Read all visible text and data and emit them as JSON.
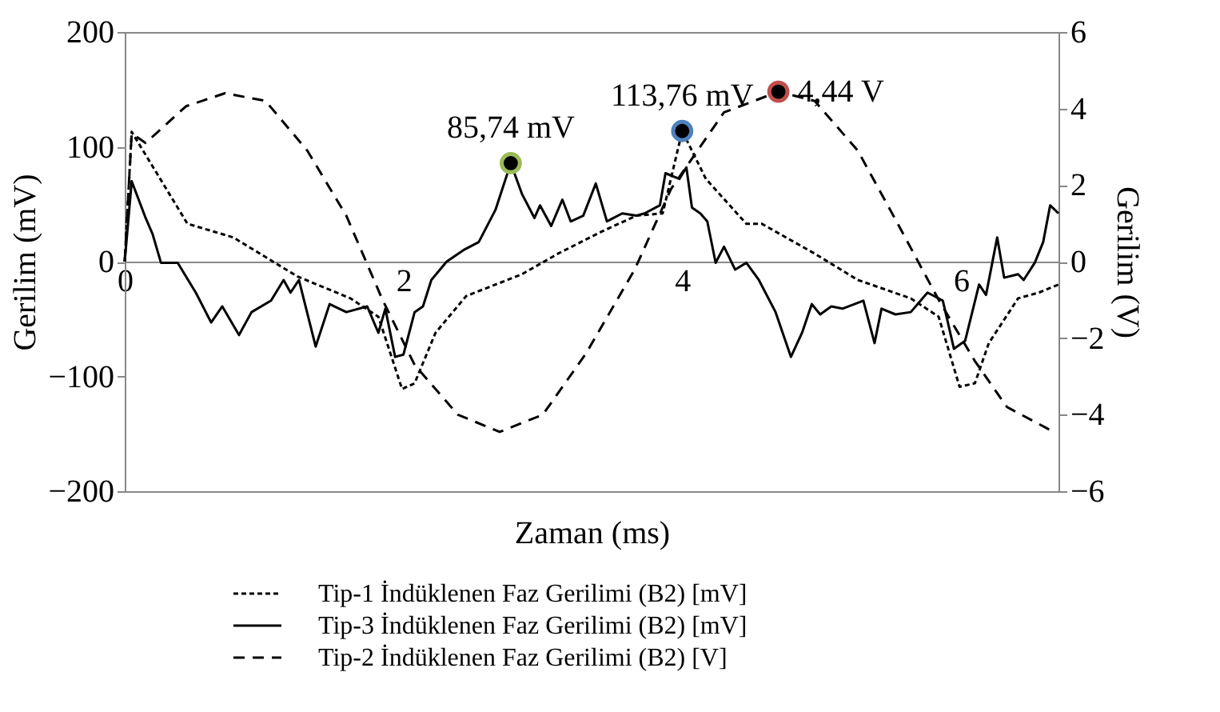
{
  "chart_data": {
    "type": "line",
    "xlabel": "Zaman (ms)",
    "ylabel": "Gerilim (mV)",
    "y2label": "Gerilim (V)",
    "xlim": [
      0,
      6.7
    ],
    "xticks": [
      0,
      2,
      4,
      6
    ],
    "ylim": [
      -200,
      200
    ],
    "yticks": [
      -200,
      -100,
      0,
      100,
      200
    ],
    "y2lim": [
      -6,
      6
    ],
    "y2ticks": [
      -6,
      -4,
      -2,
      0,
      2,
      4,
      6
    ],
    "grid": false,
    "legend": "bottom",
    "series": [
      {
        "name": "Tip-1 İndüklenen Faz Gerilimi (B2) [mV]",
        "color": "#000000",
        "line_style": "dotted",
        "x": [
          0,
          0.05,
          0.45,
          0.78,
          1.24,
          1.62,
          1.82,
          1.99,
          2.08,
          2.23,
          2.45,
          2.85,
          3.11,
          3.42,
          3.67,
          3.86,
          4.0,
          4.17,
          4.46,
          4.57,
          4.95,
          5.26,
          5.64,
          5.84,
          5.99,
          6.1,
          6.2,
          6.41,
          6.56,
          6.7
        ],
        "values": [
          0,
          113,
          33,
          21,
          -13,
          -32,
          -48,
          -111,
          -106,
          -62,
          -30,
          -11,
          7,
          26,
          40,
          42,
          113.76,
          72,
          33,
          33,
          7,
          -16,
          -32,
          -48,
          -109,
          -106,
          -71,
          -32,
          -27,
          -20
        ]
      },
      {
        "name": "Tip-3 İndüklenen Faz Gerilimi (B2) [mV]",
        "color": "#000000",
        "line_style": "solid",
        "x": [
          0,
          0.05,
          0.15,
          0.2,
          0.26,
          0.38,
          0.51,
          0.62,
          0.7,
          0.82,
          0.91,
          1.05,
          1.14,
          1.19,
          1.25,
          1.37,
          1.47,
          1.59,
          1.74,
          1.82,
          1.87,
          1.94,
          2.0,
          2.08,
          2.14,
          2.2,
          2.31,
          2.43,
          2.54,
          2.66,
          2.77,
          2.85,
          2.94,
          2.98,
          3.06,
          3.14,
          3.2,
          3.29,
          3.38,
          3.46,
          3.57,
          3.67,
          3.73,
          3.84,
          3.88,
          3.98,
          4.03,
          4.07,
          4.13,
          4.18,
          4.24,
          4.3,
          4.38,
          4.46,
          4.55,
          4.67,
          4.78,
          4.86,
          4.93,
          4.99,
          5.07,
          5.15,
          5.3,
          5.38,
          5.43,
          5.53,
          5.64,
          5.76,
          5.87,
          5.95,
          6.03,
          6.13,
          6.18,
          6.26,
          6.31,
          6.41,
          6.45,
          6.53,
          6.59,
          6.64,
          6.7
        ],
        "values": [
          0,
          70,
          38,
          24,
          -1,
          -1,
          -27,
          -53,
          -39,
          -64,
          -44,
          -34,
          -16,
          -27,
          -16,
          -74,
          -37,
          -44,
          -39,
          -62,
          -41,
          -83,
          -81,
          -44,
          -39,
          -16,
          0,
          10,
          17,
          45,
          85.74,
          59,
          38,
          49,
          31,
          54,
          35,
          40,
          68,
          35,
          42,
          40,
          42,
          49,
          77,
          72,
          82,
          47,
          42,
          35,
          -1,
          13,
          -7,
          -1,
          -16,
          -44,
          -83,
          -62,
          -37,
          -46,
          -39,
          -41,
          -34,
          -71,
          -41,
          -46,
          -44,
          -27,
          -34,
          -76,
          -69,
          -20,
          -29,
          21,
          -14,
          -11,
          -16,
          -1,
          17,
          49,
          42
        ]
      },
      {
        "name": "Tip-2 İndüklenen Faz Gerilimi (B2) [V]",
        "color": "#000000",
        "line_style": "dashed",
        "axis": "y2",
        "x": [
          0,
          0.05,
          0.15,
          0.44,
          0.72,
          1.01,
          1.31,
          1.59,
          1.85,
          2.08,
          2.39,
          2.69,
          3.0,
          3.31,
          3.66,
          3.92,
          4.3,
          4.69,
          4.95,
          5.26,
          5.56,
          5.84,
          6.1,
          6.33,
          6.64
        ],
        "values": [
          0,
          3.35,
          3.1,
          4.06,
          4.4,
          4.2,
          2.9,
          1.2,
          -1.0,
          -2.7,
          -4.0,
          -4.45,
          -4.0,
          -2.4,
          -0.2,
          1.9,
          3.9,
          4.44,
          4.2,
          2.9,
          0.9,
          -1.0,
          -2.6,
          -3.8,
          -4.4
        ]
      },
      {
        "type": "scatter",
        "marker": "circle",
        "color": "#9bbb59",
        "x": [
          2.77
        ],
        "values": [
          85.74
        ],
        "value_labels": [
          "85,74 mV"
        ]
      },
      {
        "type": "scatter",
        "marker": "circle",
        "color": "#4f81bd",
        "x": [
          4.0
        ],
        "values": [
          113.76
        ],
        "value_labels": [
          "113,76 mV"
        ]
      },
      {
        "type": "scatter",
        "marker": "circle",
        "color": "#c0504d",
        "axis": "y2",
        "x": [
          4.69
        ],
        "values": [
          4.44
        ],
        "value_labels": [
          "4,44 V"
        ]
      }
    ]
  }
}
